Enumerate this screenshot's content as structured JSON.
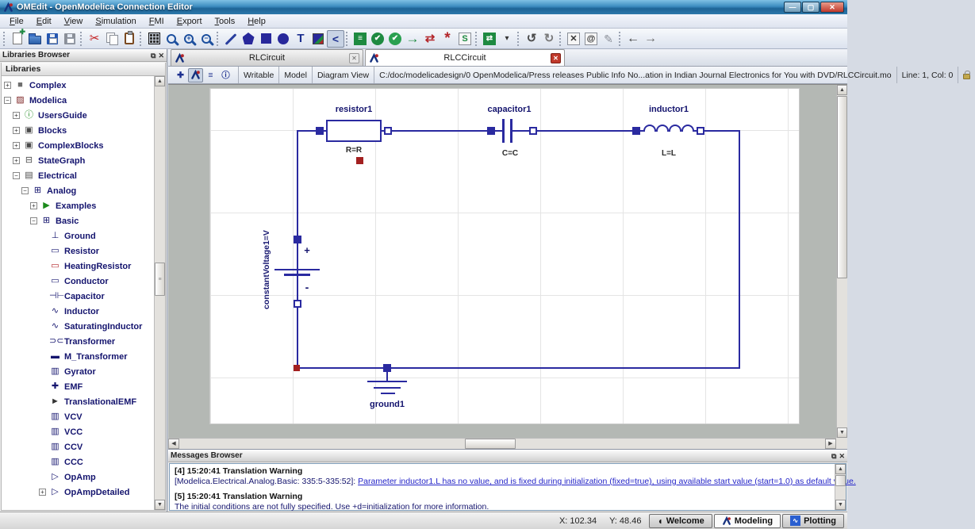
{
  "window": {
    "title": "OMEdit - OpenModelica Connection Editor",
    "controls": [
      {
        "name": "minimize-button",
        "glyph": "—"
      },
      {
        "name": "maximize-button",
        "glyph": "▢"
      },
      {
        "name": "close-button",
        "glyph": "✕"
      }
    ]
  },
  "menu": {
    "items": [
      "File",
      "Edit",
      "View",
      "Simulation",
      "FMI",
      "Export",
      "Tools",
      "Help"
    ]
  },
  "toolbar": {
    "groups": [
      [
        {
          "name": "new-file-icon",
          "kind": "page"
        },
        {
          "name": "open-file-icon",
          "kind": "folder"
        },
        {
          "name": "save-icon",
          "kind": "floppy",
          "fg": "#2456b0"
        },
        {
          "name": "save-as-icon",
          "kind": "floppy",
          "fg": "#8a8f98"
        }
      ],
      [
        {
          "name": "cut-icon",
          "kind": "glyph",
          "glyph": "✂",
          "fg": "#c41b1b",
          "size": 15
        },
        {
          "name": "copy-icon",
          "kind": "copy"
        },
        {
          "name": "paste-icon",
          "kind": "clipboard"
        }
      ],
      [
        {
          "name": "show-grid-icon",
          "kind": "grid"
        },
        {
          "name": "zoom-fit-icon",
          "kind": "mag",
          "glyph": ""
        },
        {
          "name": "zoom-in-icon",
          "kind": "mag",
          "glyph": "+"
        },
        {
          "name": "zoom-out-icon",
          "kind": "mag",
          "glyph": "−"
        }
      ],
      [
        {
          "name": "line-tool-icon",
          "kind": "line"
        },
        {
          "name": "polygon-tool-icon",
          "kind": "penta"
        },
        {
          "name": "rectangle-tool-icon",
          "kind": "square"
        },
        {
          "name": "ellipse-tool-icon",
          "kind": "circle"
        },
        {
          "name": "text-tool-icon",
          "kind": "glyph",
          "glyph": "T",
          "fg": "#1c2f8f",
          "bold": true,
          "size": 15
        },
        {
          "name": "bitmap-tool-icon",
          "kind": "bitmap"
        },
        {
          "name": "connect-tool-icon",
          "kind": "glyph",
          "glyph": "<",
          "fg": "#1c2f8f",
          "bold": true,
          "size": 14,
          "pressed": true
        }
      ],
      [
        {
          "name": "check-model-icon",
          "kind": "boxfill",
          "glyph": "≡",
          "bg": "#1e8a41"
        },
        {
          "name": "check-all-models-icon",
          "kind": "circlefill",
          "glyph": "✔",
          "bg": "#1e8a41"
        },
        {
          "name": "instantiate-model-icon",
          "kind": "circlefill",
          "glyph": "✔",
          "bg": "#2aa050"
        },
        {
          "name": "simulate-icon",
          "kind": "glyph",
          "glyph": "→",
          "fg": "#1e8a41",
          "bold": true,
          "size": 17
        },
        {
          "name": "simulate-transformational-debugger-icon",
          "kind": "glyph",
          "glyph": "⇄",
          "fg": "#b3262a",
          "bold": true,
          "size": 15
        },
        {
          "name": "simulate-algorithmic-debugger-icon",
          "kind": "glyph",
          "glyph": "*",
          "fg": "#b3262a",
          "bold": true,
          "size": 19
        },
        {
          "name": "simulation-setup-icon",
          "kind": "boxglyph",
          "glyph": "S",
          "fg": "#1e8a41"
        }
      ],
      [
        {
          "name": "new-plot-window-icon",
          "kind": "boxfill",
          "glyph": "⇄",
          "bg": "#1e8a41"
        },
        {
          "name": "plot-dropdown-icon",
          "kind": "glyph",
          "glyph": "▾",
          "fg": "#333",
          "size": 10
        }
      ],
      [
        {
          "name": "re-simulate-icon",
          "kind": "glyph",
          "glyph": "↺",
          "fg": "#4a4a4a",
          "bold": true,
          "size": 15
        },
        {
          "name": "re-simulate-setup-icon",
          "kind": "glyph",
          "glyph": "↻",
          "fg": "#7a7a7a",
          "bold": true,
          "size": 15
        }
      ],
      [
        {
          "name": "fit-to-diagram-icon",
          "kind": "boxglyph",
          "glyph": "✕",
          "fg": "#333"
        },
        {
          "name": "reset-zoom-icon",
          "kind": "boxglyph",
          "glyph": "@",
          "fg": "#333"
        },
        {
          "name": "clear-icon",
          "kind": "glyph",
          "glyph": "✎",
          "fg": "#8a8f98",
          "size": 14
        }
      ],
      [
        {
          "name": "navigate-back-icon",
          "kind": "glyph",
          "glyph": "←",
          "fg": "#3f3f3f",
          "bold": true,
          "size": 16
        },
        {
          "name": "navigate-forward-icon",
          "kind": "glyph",
          "glyph": "→",
          "fg": "#6a6a6a",
          "bold": true,
          "size": 16
        }
      ]
    ]
  },
  "libraries": {
    "title": "Libraries Browser",
    "header": "Libraries",
    "items": [
      {
        "label": "Complex",
        "depth": 0,
        "expander": "plus",
        "glyph": "■",
        "color": "#6e6e6e"
      },
      {
        "label": "Modelica",
        "depth": 0,
        "expander": "minus",
        "glyph": "▨",
        "color": "#7a1f1f"
      },
      {
        "label": "UsersGuide",
        "depth": 1,
        "expander": "plus",
        "glyph": "ⓘ",
        "color": "#1b8a1b"
      },
      {
        "label": "Blocks",
        "depth": 1,
        "expander": "plus",
        "glyph": "▣",
        "color": "#4a4a4a"
      },
      {
        "label": "ComplexBlocks",
        "depth": 1,
        "expander": "plus",
        "glyph": "▣",
        "color": "#4a4a4a"
      },
      {
        "label": "StateGraph",
        "depth": 1,
        "expander": "plus",
        "glyph": "⊟",
        "color": "#4a4a4a"
      },
      {
        "label": "Electrical",
        "depth": 1,
        "expander": "minus",
        "glyph": "▤",
        "color": "#4a4a4a"
      },
      {
        "label": "Analog",
        "depth": 2,
        "expander": "minus",
        "glyph": "⊞",
        "color": "#14146e"
      },
      {
        "label": "Examples",
        "depth": 3,
        "expander": "plus",
        "glyph": "▶",
        "color": "#1b8a1b"
      },
      {
        "label": "Basic",
        "depth": 3,
        "expander": "minus",
        "glyph": "⊞",
        "color": "#14146e"
      },
      {
        "label": "Ground",
        "depth": 4,
        "expander": "none",
        "glyph": "⊥",
        "color": "#14146e"
      },
      {
        "label": "Resistor",
        "depth": 4,
        "expander": "none",
        "glyph": "▭",
        "color": "#14146e"
      },
      {
        "label": "HeatingResistor",
        "depth": 4,
        "expander": "none",
        "glyph": "▭",
        "color": "#b3262a"
      },
      {
        "label": "Conductor",
        "depth": 4,
        "expander": "none",
        "glyph": "▭",
        "color": "#14146e"
      },
      {
        "label": "Capacitor",
        "depth": 4,
        "expander": "none",
        "glyph": "⊣⊢",
        "color": "#14146e"
      },
      {
        "label": "Inductor",
        "depth": 4,
        "expander": "none",
        "glyph": "∿",
        "color": "#14146e"
      },
      {
        "label": "SaturatingInductor",
        "depth": 4,
        "expander": "none",
        "glyph": "∿",
        "color": "#14146e"
      },
      {
        "label": "Transformer",
        "depth": 4,
        "expander": "none",
        "glyph": "⊃⊂",
        "color": "#14146e"
      },
      {
        "label": "M_Transformer",
        "depth": 4,
        "expander": "none",
        "glyph": "▬",
        "color": "#14146e"
      },
      {
        "label": "Gyrator",
        "depth": 4,
        "expander": "none",
        "glyph": "▥",
        "color": "#14146e"
      },
      {
        "label": "EMF",
        "depth": 4,
        "expander": "none",
        "glyph": "✚",
        "color": "#14146e"
      },
      {
        "label": "TranslationalEMF",
        "depth": 4,
        "expander": "none",
        "glyph": "►",
        "color": "#333333"
      },
      {
        "label": "VCV",
        "depth": 4,
        "expander": "none",
        "glyph": "▥",
        "color": "#14146e"
      },
      {
        "label": "VCC",
        "depth": 4,
        "expander": "none",
        "glyph": "▥",
        "color": "#14146e"
      },
      {
        "label": "CCV",
        "depth": 4,
        "expander": "none",
        "glyph": "▥",
        "color": "#14146e"
      },
      {
        "label": "CCC",
        "depth": 4,
        "expander": "none",
        "glyph": "▥",
        "color": "#14146e"
      },
      {
        "label": "OpAmp",
        "depth": 4,
        "expander": "none",
        "glyph": "▷",
        "color": "#14146e"
      },
      {
        "label": "OpAmpDetailed",
        "depth": 4,
        "expander": "plus",
        "glyph": "▷",
        "color": "#14146e"
      }
    ]
  },
  "tabs": [
    {
      "label": "RLCircuit",
      "active": false
    },
    {
      "label": "RLCCircuit",
      "active": true
    }
  ],
  "docbar": {
    "views": [
      {
        "name": "icon-view-icon",
        "glyph": "✚",
        "color": "#1c2f8f"
      },
      {
        "name": "diagram-view-icon",
        "logo": true,
        "pressed": true
      },
      {
        "name": "text-view-icon",
        "glyph": "≡",
        "color": "#1c2f8f"
      },
      {
        "name": "documentation-view-icon",
        "glyph": "ⓘ",
        "color": "#1c2f8f"
      }
    ],
    "writable": "Writable",
    "model": "Model",
    "view": "Diagram View",
    "path": "C:/doc/modelicadesign/0 OpenModelica/Press releases Public Info No...ation in Indian Journal Electronics for You with DVD/RLCCircuit.mo",
    "position": "Line: 1, Col: 0"
  },
  "circuit": {
    "resistor": {
      "name": "resistor1",
      "value": "R=R"
    },
    "capacitor": {
      "name": "capacitor1",
      "value": "C=C"
    },
    "inductor": {
      "name": "inductor1",
      "value": "L=L"
    },
    "voltage_source": {
      "name": "constantVoltage1=V",
      "plus": "+",
      "minus": "-"
    },
    "ground": {
      "name": "ground1"
    },
    "colors": {
      "wire": "#2a2aa0",
      "marker": "#a32020"
    }
  },
  "messages": {
    "title": "Messages Browser",
    "entries": [
      {
        "header": "[4] 15:20:41 Translation Warning",
        "prefix": "[Modelica.Electrical.Analog.Basic: 335:5-335:52]: ",
        "link": "Parameter inductor1.L has no value, and is fixed during initialization (fixed=true), using available start value (start=1.0) as default value."
      },
      {
        "header": "[5] 15:20:41 Translation Warning",
        "prefix": "The initial conditions are not fully specified. Use +d=initialization for more information.",
        "link": ""
      }
    ]
  },
  "statusbar": {
    "x": "X: 102.34",
    "y": "Y: 48.46",
    "buttons": [
      {
        "label": "Welcome",
        "icon": "welcome-icon",
        "active": false
      },
      {
        "label": "Modeling",
        "icon": "modeling-icon",
        "active": true
      },
      {
        "label": "Plotting",
        "icon": "plotting-icon",
        "active": false
      }
    ]
  }
}
